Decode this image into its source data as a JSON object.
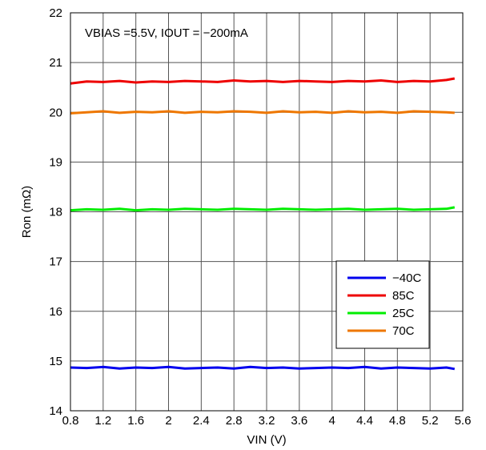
{
  "chart_data": {
    "type": "line",
    "title": "",
    "annotation": "VBIAS =5.5V, IOUT = −200mA",
    "xlabel": "VIN (V)",
    "ylabel": "Ron (mΩ)",
    "xlim": [
      0.8,
      5.6
    ],
    "ylim": [
      14,
      22
    ],
    "xticks": [
      "0.8",
      "1.2",
      "1.6",
      "2",
      "2.4",
      "2.8",
      "3.2",
      "3.6",
      "4",
      "4.4",
      "4.8",
      "5.2",
      "5.6"
    ],
    "yticks": [
      "14",
      "15",
      "16",
      "17",
      "18",
      "19",
      "20",
      "21",
      "22"
    ],
    "grid": true,
    "legend_position": "bottom-right",
    "series": [
      {
        "name": "−40C",
        "color": "#0000ee",
        "x": [
          0.8,
          1.0,
          1.2,
          1.4,
          1.6,
          1.8,
          2.0,
          2.2,
          2.4,
          2.6,
          2.8,
          3.0,
          3.2,
          3.4,
          3.6,
          3.8,
          4.0,
          4.2,
          4.4,
          4.6,
          4.8,
          5.0,
          5.2,
          5.4,
          5.5
        ],
        "y": [
          14.87,
          14.86,
          14.88,
          14.85,
          14.87,
          14.86,
          14.88,
          14.85,
          14.86,
          14.87,
          14.85,
          14.88,
          14.86,
          14.87,
          14.85,
          14.86,
          14.87,
          14.86,
          14.88,
          14.85,
          14.87,
          14.86,
          14.85,
          14.87,
          14.84
        ]
      },
      {
        "name": "85C",
        "color": "#ee0000",
        "x": [
          0.8,
          1.0,
          1.2,
          1.4,
          1.6,
          1.8,
          2.0,
          2.2,
          2.4,
          2.6,
          2.8,
          3.0,
          3.2,
          3.4,
          3.6,
          3.8,
          4.0,
          4.2,
          4.4,
          4.6,
          4.8,
          5.0,
          5.2,
          5.4,
          5.5
        ],
        "y": [
          20.58,
          20.62,
          20.61,
          20.63,
          20.6,
          20.62,
          20.61,
          20.63,
          20.62,
          20.61,
          20.64,
          20.62,
          20.63,
          20.61,
          20.63,
          20.62,
          20.61,
          20.63,
          20.62,
          20.64,
          20.61,
          20.63,
          20.62,
          20.65,
          20.68
        ]
      },
      {
        "name": "25C",
        "color": "#00ee00",
        "x": [
          0.8,
          1.0,
          1.2,
          1.4,
          1.6,
          1.8,
          2.0,
          2.2,
          2.4,
          2.6,
          2.8,
          3.0,
          3.2,
          3.4,
          3.6,
          3.8,
          4.0,
          4.2,
          4.4,
          4.6,
          4.8,
          5.0,
          5.2,
          5.4,
          5.5
        ],
        "y": [
          18.03,
          18.05,
          18.04,
          18.06,
          18.03,
          18.05,
          18.04,
          18.06,
          18.05,
          18.04,
          18.06,
          18.05,
          18.04,
          18.06,
          18.05,
          18.04,
          18.05,
          18.06,
          18.04,
          18.05,
          18.06,
          18.04,
          18.05,
          18.06,
          18.09
        ]
      },
      {
        "name": "70C",
        "color": "#ee7700",
        "x": [
          0.8,
          1.0,
          1.2,
          1.4,
          1.6,
          1.8,
          2.0,
          2.2,
          2.4,
          2.6,
          2.8,
          3.0,
          3.2,
          3.4,
          3.6,
          3.8,
          4.0,
          4.2,
          4.4,
          4.6,
          4.8,
          5.0,
          5.2,
          5.4,
          5.5
        ],
        "y": [
          19.98,
          20.0,
          20.02,
          19.99,
          20.01,
          20.0,
          20.02,
          19.99,
          20.01,
          20.0,
          20.02,
          20.01,
          19.99,
          20.02,
          20.0,
          20.01,
          19.99,
          20.02,
          20.0,
          20.01,
          19.99,
          20.02,
          20.01,
          20.0,
          19.99
        ]
      }
    ]
  }
}
